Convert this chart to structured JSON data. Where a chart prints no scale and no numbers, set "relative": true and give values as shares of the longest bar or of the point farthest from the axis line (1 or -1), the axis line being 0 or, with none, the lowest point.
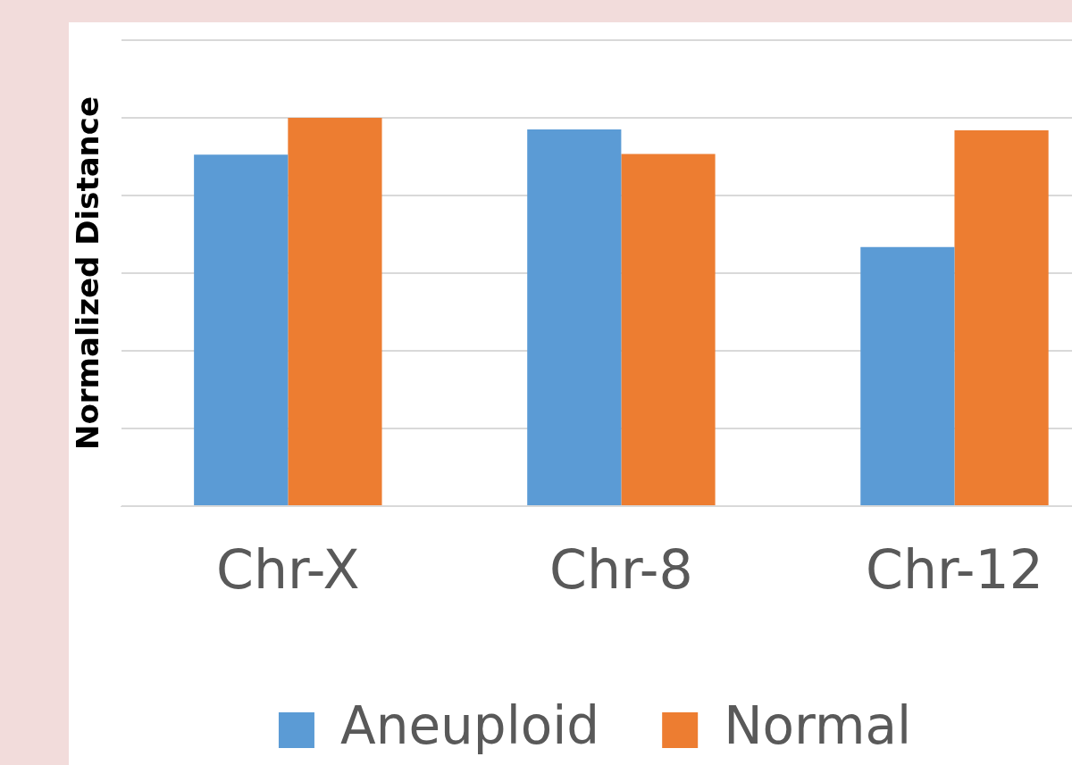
{
  "chart_data": {
    "type": "bar",
    "ylabel": "Normalized Distance",
    "categories": [
      "Chr-X",
      "Chr-8",
      "Chr-12"
    ],
    "series": [
      {
        "name": "Aneuploid",
        "color": "#5b9bd5",
        "values": [
          0.905,
          0.97,
          0.667
        ]
      },
      {
        "name": "Normal",
        "color": "#ed7d31",
        "values": [
          1,
          0.907,
          0.968
        ]
      }
    ],
    "relative": true,
    "grid": "y",
    "legend": "bottom"
  }
}
